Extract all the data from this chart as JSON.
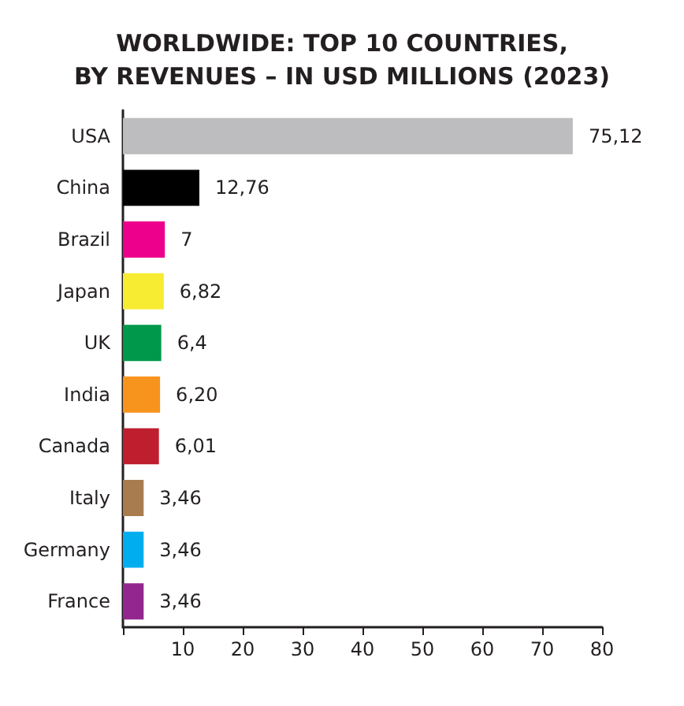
{
  "chart_data": {
    "type": "bar",
    "orientation": "horizontal",
    "title": "WORLDWIDE: TOP 10 COUNTRIES,\nBY REVENUES – IN USD MILLIONS (2023)",
    "categories": [
      "USA",
      "China",
      "Brazil",
      "Japan",
      "UK",
      "India",
      "Canada",
      "Italy",
      "Germany",
      "France"
    ],
    "values": [
      75.12,
      12.76,
      7,
      6.82,
      6.4,
      6.2,
      6.01,
      3.46,
      3.46,
      3.46
    ],
    "value_labels": [
      "75,12",
      "12,76",
      "7",
      "6,82",
      "6,4",
      "6,20",
      "6,01",
      "3,46",
      "3,46",
      "3,46"
    ],
    "colors": [
      "#bdbdbf",
      "#000000",
      "#ec008c",
      "#f7ec31",
      "#00984a",
      "#f7941d",
      "#be1e2d",
      "#a97c50",
      "#00aeef",
      "#92278f"
    ],
    "xlim": [
      0,
      80
    ],
    "xticks": [
      {
        "value": 0,
        "label": null
      },
      10,
      20,
      30,
      40,
      50,
      60,
      70,
      80
    ]
  }
}
